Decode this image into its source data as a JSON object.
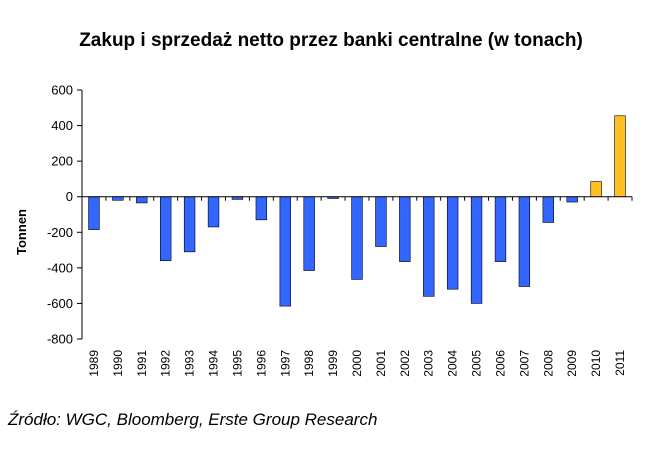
{
  "source_note": "Źródło: WGC, Bloomberg, Erste Group Research",
  "colors": {
    "negative_bar": "#3366ff",
    "positive_bar": "#ffc020",
    "bar_stroke": "#000000",
    "axis": "#000000"
  },
  "chart_data": {
    "type": "bar",
    "title": "Zakup i sprzedaż netto przez banki centralne (w tonach)",
    "xlabel": "",
    "ylabel": "Tonnen",
    "ylim": [
      -800,
      600
    ],
    "yticks": [
      600,
      400,
      200,
      0,
      -200,
      -400,
      -600,
      -800
    ],
    "ytick_labels": [
      "600",
      "400",
      "200",
      "0",
      "-200",
      "-400",
      "-600",
      "-800"
    ],
    "grid": false,
    "legend": "none",
    "categories": [
      "1989",
      "1990",
      "1991",
      "1992",
      "1993",
      "1994",
      "1995",
      "1996",
      "1997",
      "1998",
      "1999",
      "2000",
      "2001",
      "2002",
      "2003",
      "2004",
      "2005",
      "2006",
      "2007",
      "2008",
      "2009",
      "2010",
      "2011"
    ],
    "values": [
      -185,
      -20,
      -35,
      -360,
      -310,
      -170,
      -15,
      -130,
      -615,
      -415,
      -10,
      -465,
      -280,
      -365,
      -560,
      -520,
      -600,
      -365,
      -505,
      -145,
      -30,
      85,
      455
    ]
  }
}
